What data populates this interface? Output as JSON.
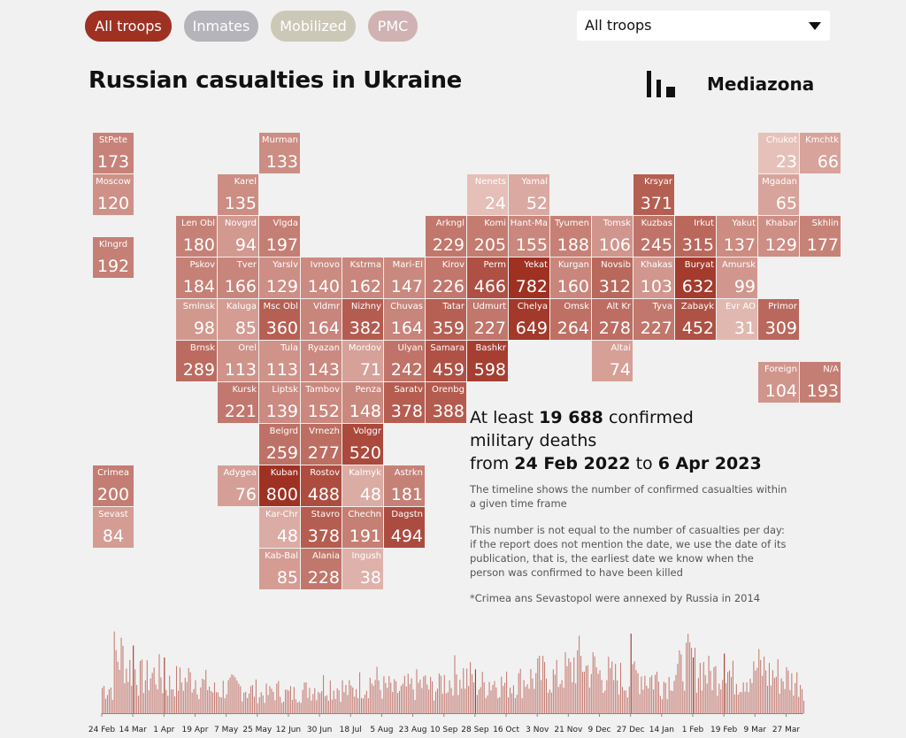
{
  "tabs": [
    {
      "label": "All troops",
      "active": true,
      "color": "#9f3123"
    },
    {
      "label": "Inmates",
      "active": false,
      "color": "#b4b4ba"
    },
    {
      "label": "Mobilized",
      "active": false,
      "color": "#cbc8b7"
    },
    {
      "label": "PMC",
      "active": false,
      "color": "#cfb2b1"
    }
  ],
  "select": {
    "value": "All troops",
    "icon": "triangle-down-icon"
  },
  "title": "Russian casualties in Ukraine",
  "logo": {
    "text": "Mediazona",
    "icon": "mediazona-bars-icon"
  },
  "colors": {
    "max": "#9f3123",
    "min": "#f3dcd6",
    "background": "#f1f1f1"
  },
  "regions": [
    {
      "name": "StPete",
      "value": 173,
      "col": 0,
      "row": 0
    },
    {
      "name": "Moscow",
      "value": 120,
      "col": 0,
      "row": 1
    },
    {
      "name": "Klngrd",
      "value": 192,
      "col": 0,
      "row": 2.5
    },
    {
      "name": "Murman",
      "value": 133,
      "col": 4,
      "row": 0
    },
    {
      "name": "Karel",
      "value": 135,
      "col": 3,
      "row": 1
    },
    {
      "name": "Len Obl",
      "value": 180,
      "col": 2,
      "row": 2
    },
    {
      "name": "Novgrd",
      "value": 94,
      "col": 3,
      "row": 2
    },
    {
      "name": "Vlgda",
      "value": 197,
      "col": 4,
      "row": 2
    },
    {
      "name": "Pskov",
      "value": 184,
      "col": 2,
      "row": 3
    },
    {
      "name": "Tver",
      "value": 166,
      "col": 3,
      "row": 3
    },
    {
      "name": "Yarslv",
      "value": 129,
      "col": 4,
      "row": 3
    },
    {
      "name": "Ivnovo",
      "value": 140,
      "col": 5,
      "row": 3
    },
    {
      "name": "Kstrma",
      "value": 162,
      "col": 6,
      "row": 3
    },
    {
      "name": "Mari-El",
      "value": 147,
      "col": 7,
      "row": 3
    },
    {
      "name": "Smlnsk",
      "value": 98,
      "col": 2,
      "row": 4
    },
    {
      "name": "Kaluga",
      "value": 85,
      "col": 3,
      "row": 4
    },
    {
      "name": "Msc Obl",
      "value": 360,
      "col": 4,
      "row": 4
    },
    {
      "name": "Vldmr",
      "value": 164,
      "col": 5,
      "row": 4
    },
    {
      "name": "Nizhny",
      "value": 382,
      "col": 6,
      "row": 4
    },
    {
      "name": "Chuvas",
      "value": 164,
      "col": 7,
      "row": 4
    },
    {
      "name": "Brnsk",
      "value": 289,
      "col": 2,
      "row": 5
    },
    {
      "name": "Orel",
      "value": 113,
      "col": 3,
      "row": 5
    },
    {
      "name": "Tula",
      "value": 113,
      "col": 4,
      "row": 5
    },
    {
      "name": "Ryazan",
      "value": 143,
      "col": 5,
      "row": 5
    },
    {
      "name": "Mordov",
      "value": 71,
      "col": 6,
      "row": 5
    },
    {
      "name": "Ulyan",
      "value": 242,
      "col": 7,
      "row": 5
    },
    {
      "name": "Kursk",
      "value": 221,
      "col": 3,
      "row": 6
    },
    {
      "name": "Liptsk",
      "value": 139,
      "col": 4,
      "row": 6
    },
    {
      "name": "Tambov",
      "value": 152,
      "col": 5,
      "row": 6
    },
    {
      "name": "Penza",
      "value": 148,
      "col": 6,
      "row": 6
    },
    {
      "name": "Saratv",
      "value": 378,
      "col": 7,
      "row": 6
    },
    {
      "name": "Orenbg",
      "value": 388,
      "col": 8,
      "row": 6
    },
    {
      "name": "Belgrd",
      "value": 259,
      "col": 4,
      "row": 7
    },
    {
      "name": "Vrnezh",
      "value": 277,
      "col": 5,
      "row": 7
    },
    {
      "name": "Volggr",
      "value": 520,
      "col": 6,
      "row": 7
    },
    {
      "name": "Crimea",
      "value": 200,
      "col": 0,
      "row": 8
    },
    {
      "name": "Sevast",
      "value": 84,
      "col": 0,
      "row": 9
    },
    {
      "name": "Adygea",
      "value": 76,
      "col": 3,
      "row": 8
    },
    {
      "name": "Kuban",
      "value": 800,
      "col": 4,
      "row": 8
    },
    {
      "name": "Rostov",
      "value": 488,
      "col": 5,
      "row": 8
    },
    {
      "name": "Kalmyk",
      "value": 48,
      "col": 6,
      "row": 8
    },
    {
      "name": "Astrkn",
      "value": 181,
      "col": 7,
      "row": 8
    },
    {
      "name": "Kar-Chr",
      "value": 48,
      "col": 4,
      "row": 9
    },
    {
      "name": "Stavro",
      "value": 378,
      "col": 5,
      "row": 9
    },
    {
      "name": "Chechn",
      "value": 191,
      "col": 6,
      "row": 9
    },
    {
      "name": "Dagstn",
      "value": 494,
      "col": 7,
      "row": 9
    },
    {
      "name": "Kab-Bal",
      "value": 85,
      "col": 4,
      "row": 10
    },
    {
      "name": "Alania",
      "value": 228,
      "col": 5,
      "row": 10
    },
    {
      "name": "Ingush",
      "value": 38,
      "col": 6,
      "row": 10
    },
    {
      "name": "Nenets",
      "value": 24,
      "col": 9,
      "row": 1
    },
    {
      "name": "Yamal",
      "value": 52,
      "col": 10,
      "row": 1
    },
    {
      "name": "Krsyar",
      "value": 371,
      "col": 13,
      "row": 1
    },
    {
      "name": "Chukot",
      "value": 23,
      "col": 16,
      "row": 0
    },
    {
      "name": "Kmchtk",
      "value": 66,
      "col": 17,
      "row": 0
    },
    {
      "name": "Mgadan",
      "value": 65,
      "col": 16,
      "row": 1
    },
    {
      "name": "Arkngl",
      "value": 229,
      "col": 8,
      "row": 2
    },
    {
      "name": "Komi",
      "value": 205,
      "col": 9,
      "row": 2
    },
    {
      "name": "Hant-Ma",
      "value": 155,
      "col": 10,
      "row": 2
    },
    {
      "name": "Tyumen",
      "value": 188,
      "col": 11,
      "row": 2
    },
    {
      "name": "Tomsk",
      "value": 106,
      "col": 12,
      "row": 2
    },
    {
      "name": "Kuzbas",
      "value": 245,
      "col": 13,
      "row": 2
    },
    {
      "name": "Irkut",
      "value": 315,
      "col": 14,
      "row": 2
    },
    {
      "name": "Yakut",
      "value": 137,
      "col": 15,
      "row": 2
    },
    {
      "name": "Khabar",
      "value": 129,
      "col": 16,
      "row": 2
    },
    {
      "name": "Skhlin",
      "value": 177,
      "col": 17,
      "row": 2
    },
    {
      "name": "Kirov",
      "value": 226,
      "col": 8,
      "row": 3
    },
    {
      "name": "Perm",
      "value": 466,
      "col": 9,
      "row": 3
    },
    {
      "name": "Yekat",
      "value": 782,
      "col": 10,
      "row": 3
    },
    {
      "name": "Kurgan",
      "value": 160,
      "col": 11,
      "row": 3
    },
    {
      "name": "Novsib",
      "value": 312,
      "col": 12,
      "row": 3
    },
    {
      "name": "Khakas",
      "value": 103,
      "col": 13,
      "row": 3
    },
    {
      "name": "Buryat",
      "value": 632,
      "col": 14,
      "row": 3
    },
    {
      "name": "Amursk",
      "value": 99,
      "col": 15,
      "row": 3
    },
    {
      "name": "Tatar",
      "value": 359,
      "col": 8,
      "row": 4
    },
    {
      "name": "Udmurt",
      "value": 227,
      "col": 9,
      "row": 4
    },
    {
      "name": "Chelya",
      "value": 649,
      "col": 10,
      "row": 4
    },
    {
      "name": "Omsk",
      "value": 264,
      "col": 11,
      "row": 4
    },
    {
      "name": "Alt Kr",
      "value": 278,
      "col": 12,
      "row": 4
    },
    {
      "name": "Tyva",
      "value": 227,
      "col": 13,
      "row": 4
    },
    {
      "name": "Zabayk",
      "value": 452,
      "col": 14,
      "row": 4
    },
    {
      "name": "Evr AO",
      "value": 31,
      "col": 15,
      "row": 4
    },
    {
      "name": "Primor",
      "value": 309,
      "col": 16,
      "row": 4
    },
    {
      "name": "Samara",
      "value": 459,
      "col": 8,
      "row": 5
    },
    {
      "name": "Bashkr",
      "value": 598,
      "col": 9,
      "row": 5
    },
    {
      "name": "Altai",
      "value": 74,
      "col": 12,
      "row": 5
    },
    {
      "name": "Foreign",
      "value": 104,
      "col": 16,
      "row": 5.5
    },
    {
      "name": "N/A",
      "value": 193,
      "col": 17,
      "row": 5.5
    }
  ],
  "summary": {
    "prefix": "At least",
    "count": "19 688",
    "suffix": "confirmed",
    "line2": "military deaths",
    "from_word": "from",
    "start": "24 Feb 2022",
    "to_word": "to",
    "end": "6 Apr 2023",
    "note1": "The timeline shows the number of confirmed casualties within a given time frame",
    "note2": "This number is not equal to the number of casualties per day: if the report does not mention the date, we use the date of its publication, that is, the earliest date we know when the person was confirmed to have been killed",
    "note3": "*Crimea ans Sevastopol were annexed by Russia in 2014"
  },
  "chart_data": {
    "type": "bar",
    "x_start": "2022-02-24",
    "x_end": "2023-04-06",
    "tick_labels": [
      "24 Feb",
      "14 Mar",
      "1 Apr",
      "19 Apr",
      "7 May",
      "25 May",
      "12 Jun",
      "30 Jun",
      "18 Jul",
      "5 Aug",
      "23 Aug",
      "10 Sep",
      "28 Sep",
      "16 Oct",
      "3 Nov",
      "21 Nov",
      "9 Dec",
      "27 Dec",
      "14 Jan",
      "1 Feb",
      "19 Feb",
      "9 Mar",
      "27 Mar"
    ],
    "weekly_values": [
      40,
      90,
      70,
      55,
      60,
      45,
      50,
      55,
      45,
      35,
      40,
      40,
      35,
      30,
      35,
      30,
      35,
      40,
      45,
      40,
      35,
      45,
      50,
      40,
      35,
      40,
      45,
      40,
      50,
      60,
      55,
      45,
      50,
      45,
      50,
      55,
      60,
      55,
      65,
      80,
      70,
      60,
      55,
      50,
      60,
      55,
      50,
      65,
      80,
      70,
      60,
      65,
      55,
      60,
      70,
      60,
      55,
      50,
      45,
      40,
      35
    ],
    "peaks": [
      {
        "date": "2022-03-14",
        "value": 85
      },
      {
        "date": "2022-04-01",
        "value": 70
      },
      {
        "date": "2022-09-28",
        "value": 55
      },
      {
        "date": "2022-12-27",
        "value": 100
      },
      {
        "date": "2023-02-01",
        "value": 70
      },
      {
        "date": "2023-02-19",
        "value": 75
      }
    ],
    "bar_color": "#b5544a"
  }
}
